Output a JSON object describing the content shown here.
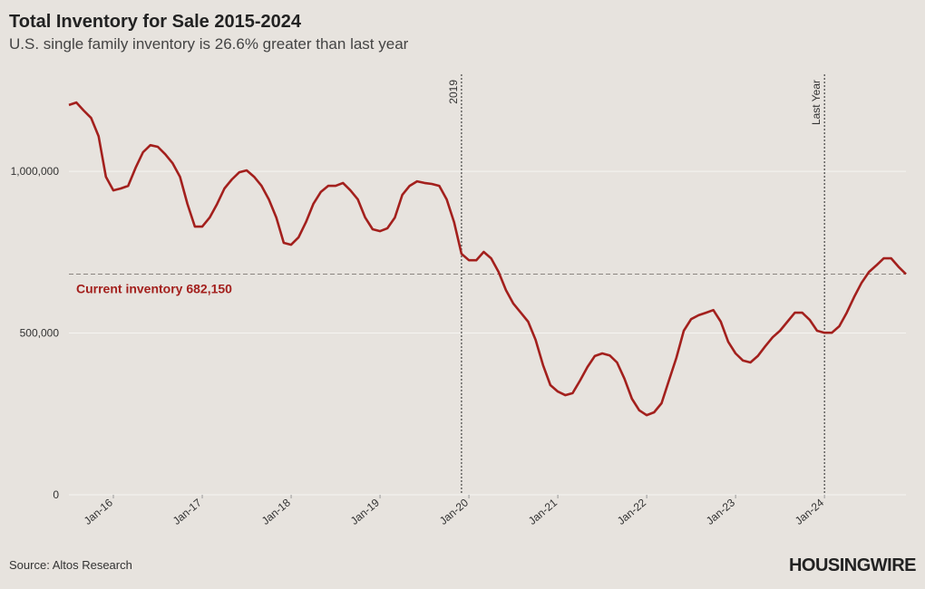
{
  "chart_data": {
    "type": "line",
    "title": "Total Inventory for Sale 2015-2024",
    "subtitle": "U.S. single family inventory is 26.6% greater than last year",
    "source": "Source: Altos Research",
    "brand": "HOUSINGWIRE",
    "x": [
      "2015-07",
      "2015-08",
      "2015-09",
      "2015-10",
      "2015-11",
      "2015-12",
      "2016-01",
      "2016-02",
      "2016-03",
      "2016-04",
      "2016-05",
      "2016-06",
      "2016-07",
      "2016-08",
      "2016-09",
      "2016-10",
      "2016-11",
      "2016-12",
      "2017-01",
      "2017-02",
      "2017-03",
      "2017-04",
      "2017-05",
      "2017-06",
      "2017-07",
      "2017-08",
      "2017-09",
      "2017-10",
      "2017-11",
      "2017-12",
      "2018-01",
      "2018-02",
      "2018-03",
      "2018-04",
      "2018-05",
      "2018-06",
      "2018-07",
      "2018-08",
      "2018-09",
      "2018-10",
      "2018-11",
      "2018-12",
      "2019-01",
      "2019-02",
      "2019-03",
      "2019-04",
      "2019-05",
      "2019-06",
      "2019-07",
      "2019-08",
      "2019-09",
      "2019-10",
      "2019-11",
      "2019-12",
      "2020-01",
      "2020-02",
      "2020-03",
      "2020-04",
      "2020-05",
      "2020-06",
      "2020-07",
      "2020-08",
      "2020-09",
      "2020-10",
      "2020-11",
      "2020-12",
      "2021-01",
      "2021-02",
      "2021-03",
      "2021-04",
      "2021-05",
      "2021-06",
      "2021-07",
      "2021-08",
      "2021-09",
      "2021-10",
      "2021-11",
      "2021-12",
      "2022-01",
      "2022-02",
      "2022-03",
      "2022-04",
      "2022-05",
      "2022-06",
      "2022-07",
      "2022-08",
      "2022-09",
      "2022-10",
      "2022-11",
      "2022-12",
      "2023-01",
      "2023-02",
      "2023-03",
      "2023-04",
      "2023-05",
      "2023-06",
      "2023-07",
      "2023-08",
      "2023-09",
      "2023-10",
      "2023-11",
      "2023-12",
      "2024-01",
      "2024-02",
      "2024-03",
      "2024-04",
      "2024-05",
      "2024-06",
      "2024-07",
      "2024-08",
      "2024-09",
      "2024-10",
      "2024-11",
      "2024-12"
    ],
    "series": [
      {
        "color": "#a3201d",
        "values": [
          1205000,
          1213000,
          1188000,
          1165000,
          1109000,
          983000,
          941000,
          947000,
          955000,
          1011000,
          1059000,
          1081000,
          1076000,
          1053000,
          1025000,
          983000,
          899000,
          829000,
          829000,
          857000,
          899000,
          947000,
          975000,
          997000,
          1003000,
          983000,
          955000,
          913000,
          857000,
          779000,
          773000,
          796000,
          843000,
          899000,
          936000,
          955000,
          955000,
          964000,
          941000,
          913000,
          857000,
          821000,
          815000,
          824000,
          857000,
          927000,
          955000,
          969000,
          964000,
          961000,
          955000,
          913000,
          843000,
          745000,
          725000,
          725000,
          751000,
          731000,
          689000,
          633000,
          591000,
          563000,
          535000,
          479000,
          401000,
          339000,
          319000,
          308000,
          314000,
          353000,
          395000,
          429000,
          437000,
          431000,
          409000,
          359000,
          297000,
          261000,
          246000,
          255000,
          283000,
          353000,
          423000,
          507000,
          543000,
          555000,
          563000,
          571000,
          535000,
          473000,
          437000,
          415000,
          409000,
          429000,
          459000,
          487000,
          507000,
          535000,
          563000,
          563000,
          541000,
          507000,
          501000,
          501000,
          521000,
          563000,
          611000,
          655000,
          689000,
          709000,
          731000,
          731000,
          705000,
          682150
        ]
      }
    ],
    "xlim": [
      "2015-07",
      "2024-12"
    ],
    "xticks": [
      {
        "value": "2016-01",
        "label": "Jan-16"
      },
      {
        "value": "2017-01",
        "label": "Jan-17"
      },
      {
        "value": "2018-01",
        "label": "Jan-18"
      },
      {
        "value": "2019-01",
        "label": "Jan-19"
      },
      {
        "value": "2020-01",
        "label": "Jan-20"
      },
      {
        "value": "2021-01",
        "label": "Jan-21"
      },
      {
        "value": "2022-01",
        "label": "Jan-22"
      },
      {
        "value": "2023-01",
        "label": "Jan-23"
      },
      {
        "value": "2024-01",
        "label": "Jan-24"
      }
    ],
    "ylim": [
      0,
      1300000
    ],
    "yticks": [
      0,
      {
        "value": 500000,
        "label": "500,000"
      },
      {
        "value": 1000000,
        "label": "1,000,000"
      }
    ],
    "grid": true,
    "reference_line": {
      "value": 682150,
      "label": "Current inventory 682,150"
    },
    "markers": [
      {
        "x": "2019-12",
        "label": "2019"
      },
      {
        "x": "2024-01",
        "label": "Last Year"
      }
    ]
  }
}
